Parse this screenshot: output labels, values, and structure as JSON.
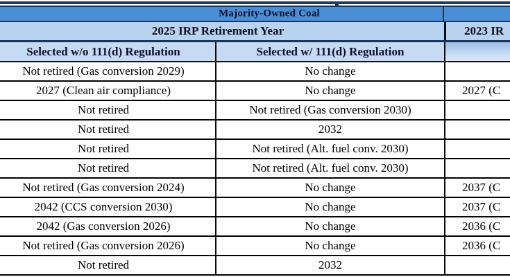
{
  "colors": {
    "title_band": "#4a8ed8",
    "group_band": "#b8d2ef",
    "sub_band": "#c6daf3",
    "border_navy": "#16345c",
    "border_black": "#000000",
    "header_text": "#0b1026"
  },
  "table": {
    "title": "Majority-Owned Coal",
    "group_left": "2025 IRP Retirement Year",
    "group_right": "2023 IR",
    "sub_left": "Selected w/o 111(d) Regulation",
    "sub_right": "Selected w/ 111(d) Regulation",
    "rows": [
      [
        "Not retired (Gas conversion 2029)",
        "No change",
        ""
      ],
      [
        "2027 (Clean air compliance)",
        "No change",
        "2027 (C"
      ],
      [
        "Not retired",
        "Not retired (Gas conversion 2030)",
        ""
      ],
      [
        "Not retired",
        "2032",
        ""
      ],
      [
        "Not retired",
        "Not retired (Alt. fuel conv. 2030)",
        ""
      ],
      [
        "Not retired",
        "Not retired (Alt. fuel conv. 2030)",
        ""
      ],
      [
        "Not retired (Gas conversion 2024)",
        "No change",
        "2037 (C"
      ],
      [
        "2042 (CCS conversion 2030)",
        "No change",
        "2037 (C"
      ],
      [
        "2042 (Gas conversion 2026)",
        "No change",
        "2036 (C"
      ],
      [
        "Not retired (Gas conversion 2026)",
        "No change",
        "2036 (C"
      ],
      [
        "Not retired",
        "2032",
        ""
      ]
    ]
  }
}
